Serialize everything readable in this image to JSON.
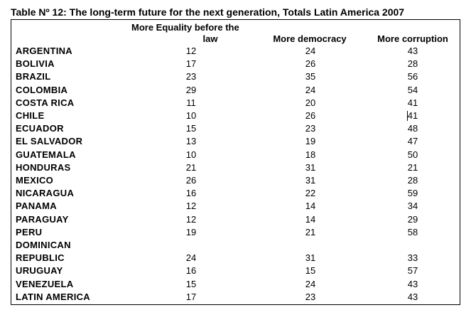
{
  "title": "Table Nº 12: The long-term future for the next generation, Totals Latin America 2007",
  "headers": {
    "equality_line1": "More Equality before the",
    "equality_line2": "law",
    "democracy": "More democracy",
    "corruption": "More corruption"
  },
  "rows": [
    {
      "country": "ARGENTINA",
      "equality": "12",
      "democracy": "24",
      "corruption": "43"
    },
    {
      "country": "BOLIVIA",
      "equality": "17",
      "democracy": "26",
      "corruption": "28"
    },
    {
      "country": "BRAZIL",
      "equality": "23",
      "democracy": "35",
      "corruption": "56"
    },
    {
      "country": "COLOMBIA",
      "equality": "29",
      "democracy": "24",
      "corruption": "54"
    },
    {
      "country": "COSTA RICA",
      "equality": "11",
      "democracy": "20",
      "corruption": "41"
    },
    {
      "country": "CHILE",
      "equality": "10",
      "democracy": "26",
      "corruption": "41"
    },
    {
      "country": "ECUADOR",
      "equality": "15",
      "democracy": "23",
      "corruption": "48"
    },
    {
      "country": "EL SALVADOR",
      "equality": "13",
      "democracy": "19",
      "corruption": "47"
    },
    {
      "country": "GUATEMALA",
      "equality": "10",
      "democracy": "18",
      "corruption": "50"
    },
    {
      "country": "HONDURAS",
      "equality": "21",
      "democracy": "31",
      "corruption": "21"
    },
    {
      "country": "MEXICO",
      "equality": "26",
      "democracy": "31",
      "corruption": "28"
    },
    {
      "country": "NICARAGUA",
      "equality": "16",
      "democracy": "22",
      "corruption": "59"
    },
    {
      "country": "PANAMA",
      "equality": "12",
      "democracy": "14",
      "corruption": "34"
    },
    {
      "country": "PARAGUAY",
      "equality": "12",
      "democracy": "14",
      "corruption": "29"
    },
    {
      "country": "PERU",
      "equality": "19",
      "democracy": "21",
      "corruption": "58"
    },
    {
      "country": "DOMINICAN",
      "equality": "",
      "democracy": "",
      "corruption": ""
    },
    {
      "country": "REPUBLIC",
      "equality": "24",
      "democracy": "31",
      "corruption": "33"
    },
    {
      "country": "URUGUAY",
      "equality": "16",
      "democracy": "15",
      "corruption": "57"
    },
    {
      "country": "VENEZUELA",
      "equality": "15",
      "democracy": "24",
      "corruption": "43"
    },
    {
      "country": "LATIN AMERICA",
      "equality": "17",
      "democracy": "23",
      "corruption": "43"
    }
  ]
}
